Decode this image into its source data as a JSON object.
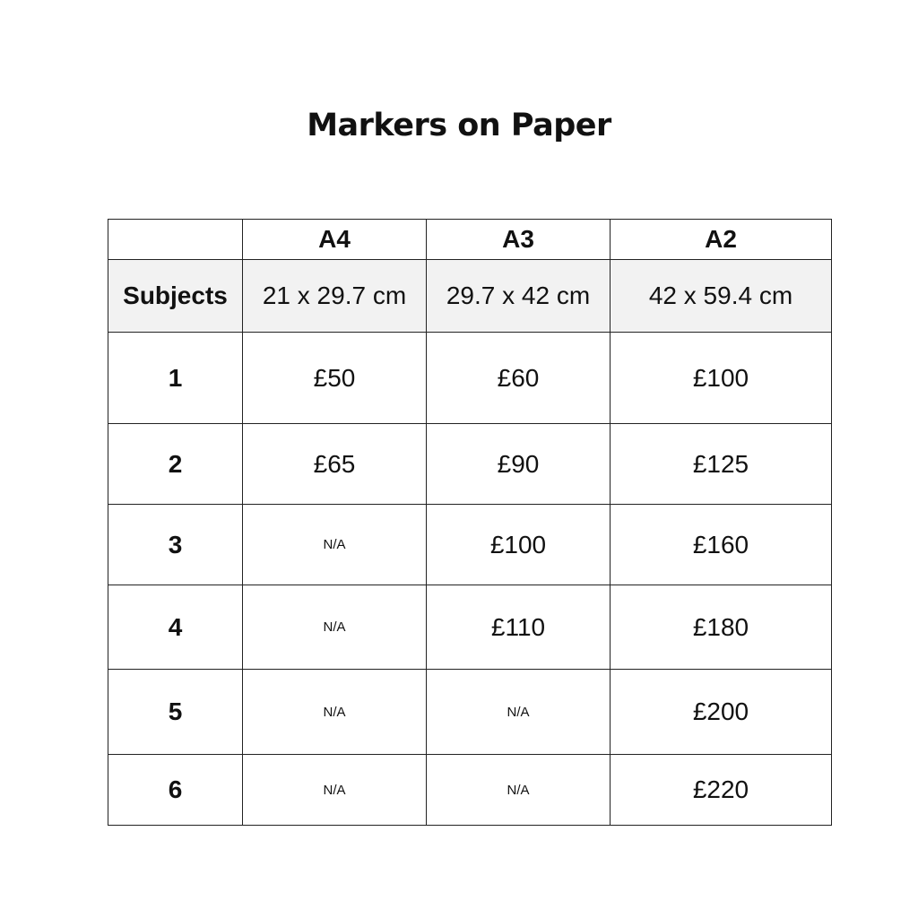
{
  "title": "Markers on Paper",
  "table": {
    "headers": [
      "",
      "A4",
      "A3",
      "A2"
    ],
    "dimensions_label": "Subjects",
    "dimensions": [
      "21 x 29.7 cm",
      "29.7 x 42 cm",
      "42 x 59.4 cm"
    ],
    "rows": [
      {
        "subjects": "1",
        "a4": "£50",
        "a3": "£60",
        "a2": "£100"
      },
      {
        "subjects": "2",
        "a4": "£65",
        "a3": "£90",
        "a2": "£125"
      },
      {
        "subjects": "3",
        "a4": "N/A",
        "a3": "£100",
        "a2": "£160"
      },
      {
        "subjects": "4",
        "a4": "N/A",
        "a3": "£110",
        "a2": "£180"
      },
      {
        "subjects": "5",
        "a4": "N/A",
        "a3": "N/A",
        "a2": "£200"
      },
      {
        "subjects": "6",
        "a4": "N/A",
        "a3": "N/A",
        "a2": "£220"
      }
    ]
  },
  "colors": {
    "dimension_row_bg": "#f2f2f2",
    "border": "#222222"
  }
}
